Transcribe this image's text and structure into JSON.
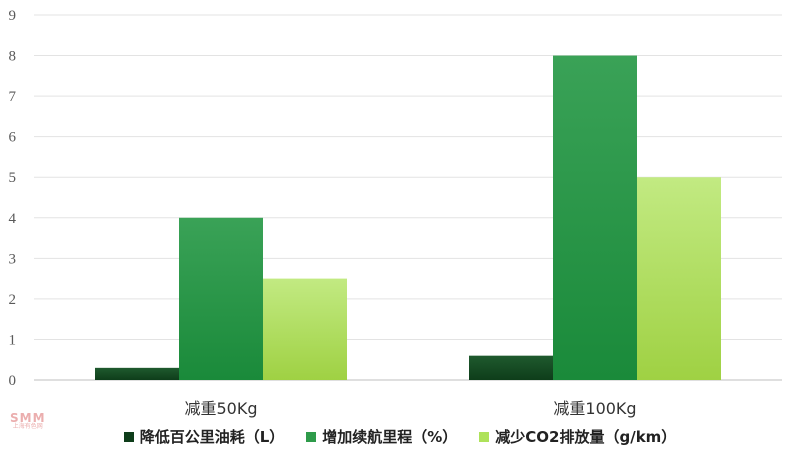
{
  "chart_data": {
    "type": "bar",
    "title": "",
    "xlabel": "",
    "ylabel": "",
    "categories": [
      "减重50Kg",
      "减重100Kg"
    ],
    "series": [
      {
        "name": "降低百公里油耗（L）",
        "values": [
          0.3,
          0.6
        ],
        "color": "#1d6b35"
      },
      {
        "name": "增加续航里程（%）",
        "values": [
          4,
          8
        ],
        "color": "#2e9b4a"
      },
      {
        "name": "减少CO2排放量（g/km）",
        "values": [
          2.5,
          5
        ],
        "color": "#aee25a"
      }
    ],
    "ylim": [
      0,
      9
    ],
    "yticks": [
      0,
      1,
      2,
      3,
      4,
      5,
      6,
      7,
      8,
      9
    ],
    "grid": true,
    "legend_position": "bottom"
  },
  "watermark": {
    "big": "SMM",
    "small": "上海有色网"
  }
}
